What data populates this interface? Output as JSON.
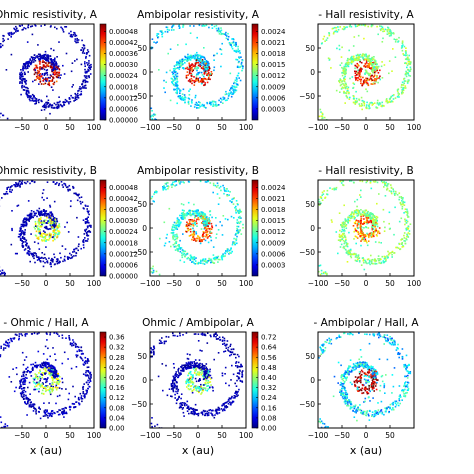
{
  "figure": {
    "xlabel": "x (au)",
    "x_ticks": [
      -100,
      -50,
      0,
      50,
      100
    ],
    "y_ticks": [
      -50,
      0,
      50
    ]
  },
  "chart_data": [
    {
      "type": "heatmap",
      "title": "Ohmic resistivity, A",
      "xlim": [
        -100,
        100
      ],
      "ylim": [
        -100,
        100
      ],
      "colorbar": {
        "ticks": [
          "0.00000",
          "0.00006",
          "0.00012",
          "0.00018",
          "0.00024",
          "0.00030",
          "0.00036",
          "0.00042",
          "0.00048"
        ],
        "range": [
          0,
          0.00052
        ]
      },
      "x_tick_labels": [
        "-50",
        "0",
        "50",
        "100"
      ],
      "y_tick_labels": [],
      "xlabel": ""
    },
    {
      "type": "heatmap",
      "title": "Ambipolar resistivity, A",
      "xlim": [
        -100,
        100
      ],
      "ylim": [
        -100,
        100
      ],
      "colorbar": {
        "ticks": [
          "0.0003",
          "0.0006",
          "0.0009",
          "0.0012",
          "0.0015",
          "0.0018",
          "0.0021",
          "0.0024"
        ],
        "range": [
          0,
          0.0026
        ]
      },
      "x_tick_labels": [
        "-100",
        "-50",
        "0",
        "50",
        "100"
      ],
      "y_tick_labels": [
        "-50",
        "0",
        "50"
      ],
      "xlabel": ""
    },
    {
      "type": "heatmap",
      "title": "- Hall resistivity, A",
      "xlim": [
        -100,
        100
      ],
      "ylim": [
        -100,
        100
      ],
      "colorbar": null,
      "x_tick_labels": [
        "-100",
        "-50",
        "0",
        "50",
        "100"
      ],
      "y_tick_labels": [
        "-50",
        "0",
        "50"
      ],
      "xlabel": ""
    },
    {
      "type": "heatmap",
      "title": "Ohmic resistivity, B",
      "xlim": [
        -100,
        100
      ],
      "ylim": [
        -100,
        100
      ],
      "colorbar": {
        "ticks": [
          "0.00000",
          "0.00006",
          "0.00012",
          "0.00018",
          "0.00024",
          "0.00030",
          "0.00036",
          "0.00042",
          "0.00048"
        ],
        "range": [
          0,
          0.00052
        ]
      },
      "x_tick_labels": [
        "-50",
        "0",
        "50",
        "100"
      ],
      "y_tick_labels": [],
      "xlabel": ""
    },
    {
      "type": "heatmap",
      "title": "Ambipolar resistivity, B",
      "xlim": [
        -100,
        100
      ],
      "ylim": [
        -100,
        100
      ],
      "colorbar": {
        "ticks": [
          "0.0003",
          "0.0006",
          "0.0009",
          "0.0012",
          "0.0015",
          "0.0018",
          "0.0021",
          "0.0024"
        ],
        "range": [
          0,
          0.0026
        ]
      },
      "x_tick_labels": [
        "-100",
        "-50",
        "0",
        "50",
        "100"
      ],
      "y_tick_labels": [
        "-50",
        "0",
        "50"
      ],
      "xlabel": ""
    },
    {
      "type": "heatmap",
      "title": "- Hall resistivity, B",
      "xlim": [
        -100,
        100
      ],
      "ylim": [
        -100,
        100
      ],
      "colorbar": null,
      "x_tick_labels": [
        "-100",
        "-50",
        "0",
        "50",
        "100"
      ],
      "y_tick_labels": [
        "-50",
        "0",
        "50"
      ],
      "xlabel": ""
    },
    {
      "type": "heatmap",
      "title": "- Ohmic / Hall, A",
      "xlim": [
        -100,
        100
      ],
      "ylim": [
        -100,
        100
      ],
      "colorbar": {
        "ticks": [
          "0.00",
          "0.04",
          "0.08",
          "0.12",
          "0.16",
          "0.20",
          "0.24",
          "0.28",
          "0.32",
          "0.36"
        ],
        "range": [
          0,
          0.38
        ]
      },
      "x_tick_labels": [
        "-50",
        "0",
        "50",
        "100"
      ],
      "y_tick_labels": [],
      "xlabel": "x (au)"
    },
    {
      "type": "heatmap",
      "title": "Ohmic / Ambipolar, A",
      "xlim": [
        -100,
        100
      ],
      "ylim": [
        -100,
        100
      ],
      "colorbar": {
        "ticks": [
          "0.00",
          "0.08",
          "0.16",
          "0.24",
          "0.32",
          "0.40",
          "0.48",
          "0.56",
          "0.64",
          "0.72"
        ],
        "range": [
          0,
          0.76
        ]
      },
      "x_tick_labels": [
        "-100",
        "-50",
        "0",
        "50",
        "100"
      ],
      "y_tick_labels": [
        "-50",
        "0",
        "50"
      ],
      "xlabel": "x (au)"
    },
    {
      "type": "heatmap",
      "title": "- Ambipolar / Hall, A",
      "xlim": [
        -100,
        100
      ],
      "ylim": [
        -100,
        100
      ],
      "colorbar": null,
      "x_tick_labels": [
        "-100",
        "-50",
        "0",
        "50"
      ],
      "y_tick_labels": [
        "-50",
        "0",
        "50"
      ],
      "xlabel": "x (au)"
    }
  ]
}
